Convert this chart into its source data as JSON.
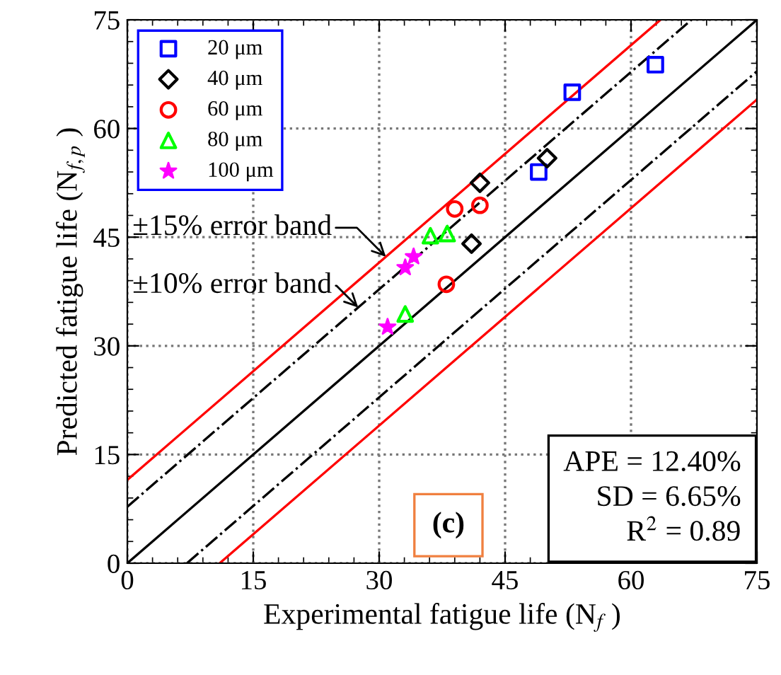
{
  "chart_data": {
    "type": "scatter",
    "xlabel": "Experimental fatigue life (N$_{f}$ )",
    "ylabel": "Predicted fatigue life (N$_{f,p}$ )",
    "xlim": [
      0,
      75
    ],
    "ylim": [
      0,
      75
    ],
    "xticks": [
      0,
      15,
      30,
      45,
      60,
      75
    ],
    "yticks": [
      0,
      15,
      30,
      45,
      60,
      75
    ],
    "grid": true,
    "legend": "top left",
    "series": [
      {
        "name": "20 μm",
        "color": "#0000ff",
        "marker": "square",
        "x": [
          62.9,
          53.0,
          49.0
        ],
        "values": [
          68.8,
          65.0,
          54.0
        ]
      },
      {
        "name": "40 μm",
        "color": "#000000",
        "marker": "diamond",
        "x": [
          50.0,
          42.0,
          41.0
        ],
        "values": [
          55.9,
          52.5,
          44.1
        ]
      },
      {
        "name": "60 μm",
        "color": "#ff0000",
        "marker": "circle",
        "x": [
          39.0,
          42.0,
          38.0
        ],
        "values": [
          48.9,
          49.4,
          38.5
        ]
      },
      {
        "name": "80 μm",
        "color": "#00ff00",
        "marker": "triangle",
        "x": [
          36.1,
          38.1,
          33.1
        ],
        "values": [
          45.2,
          45.5,
          34.4
        ]
      },
      {
        "name": "100 μm",
        "color": "#ff00ff",
        "marker": "star",
        "x": [
          34.1,
          33.1,
          31.0
        ],
        "values": [
          42.3,
          40.8,
          32.6
        ]
      },
      {
        "type": "line",
        "color": "#000000",
        "line_style": "solid",
        "x": [
          0,
          75
        ],
        "values": [
          0,
          75
        ]
      },
      {
        "type": "line",
        "color": "#000000",
        "line_style": "dashdot",
        "x": [
          0,
          67.2
        ],
        "values": [
          7.8,
          75
        ]
      },
      {
        "type": "line",
        "color": "#000000",
        "line_style": "dashdot",
        "x": [
          7.1,
          75
        ],
        "values": [
          0,
          67.9
        ]
      },
      {
        "type": "line",
        "color": "#ff0000",
        "line_style": "solid",
        "x": [
          0,
          63.5
        ],
        "values": [
          11.5,
          75
        ]
      },
      {
        "type": "line",
        "color": "#ff0000",
        "line_style": "solid",
        "x": [
          11,
          75
        ],
        "values": [
          0,
          64
        ]
      }
    ],
    "annotations": [
      {
        "text": "±15% error band",
        "x": 30.8,
        "y": 42.3
      },
      {
        "text": "±10% error band",
        "x": 27.5,
        "y": 35.3
      },
      "APE = 12.40%\nSD = 6.65%\nR$^{2}$ = 0.89",
      "(c)"
    ]
  }
}
